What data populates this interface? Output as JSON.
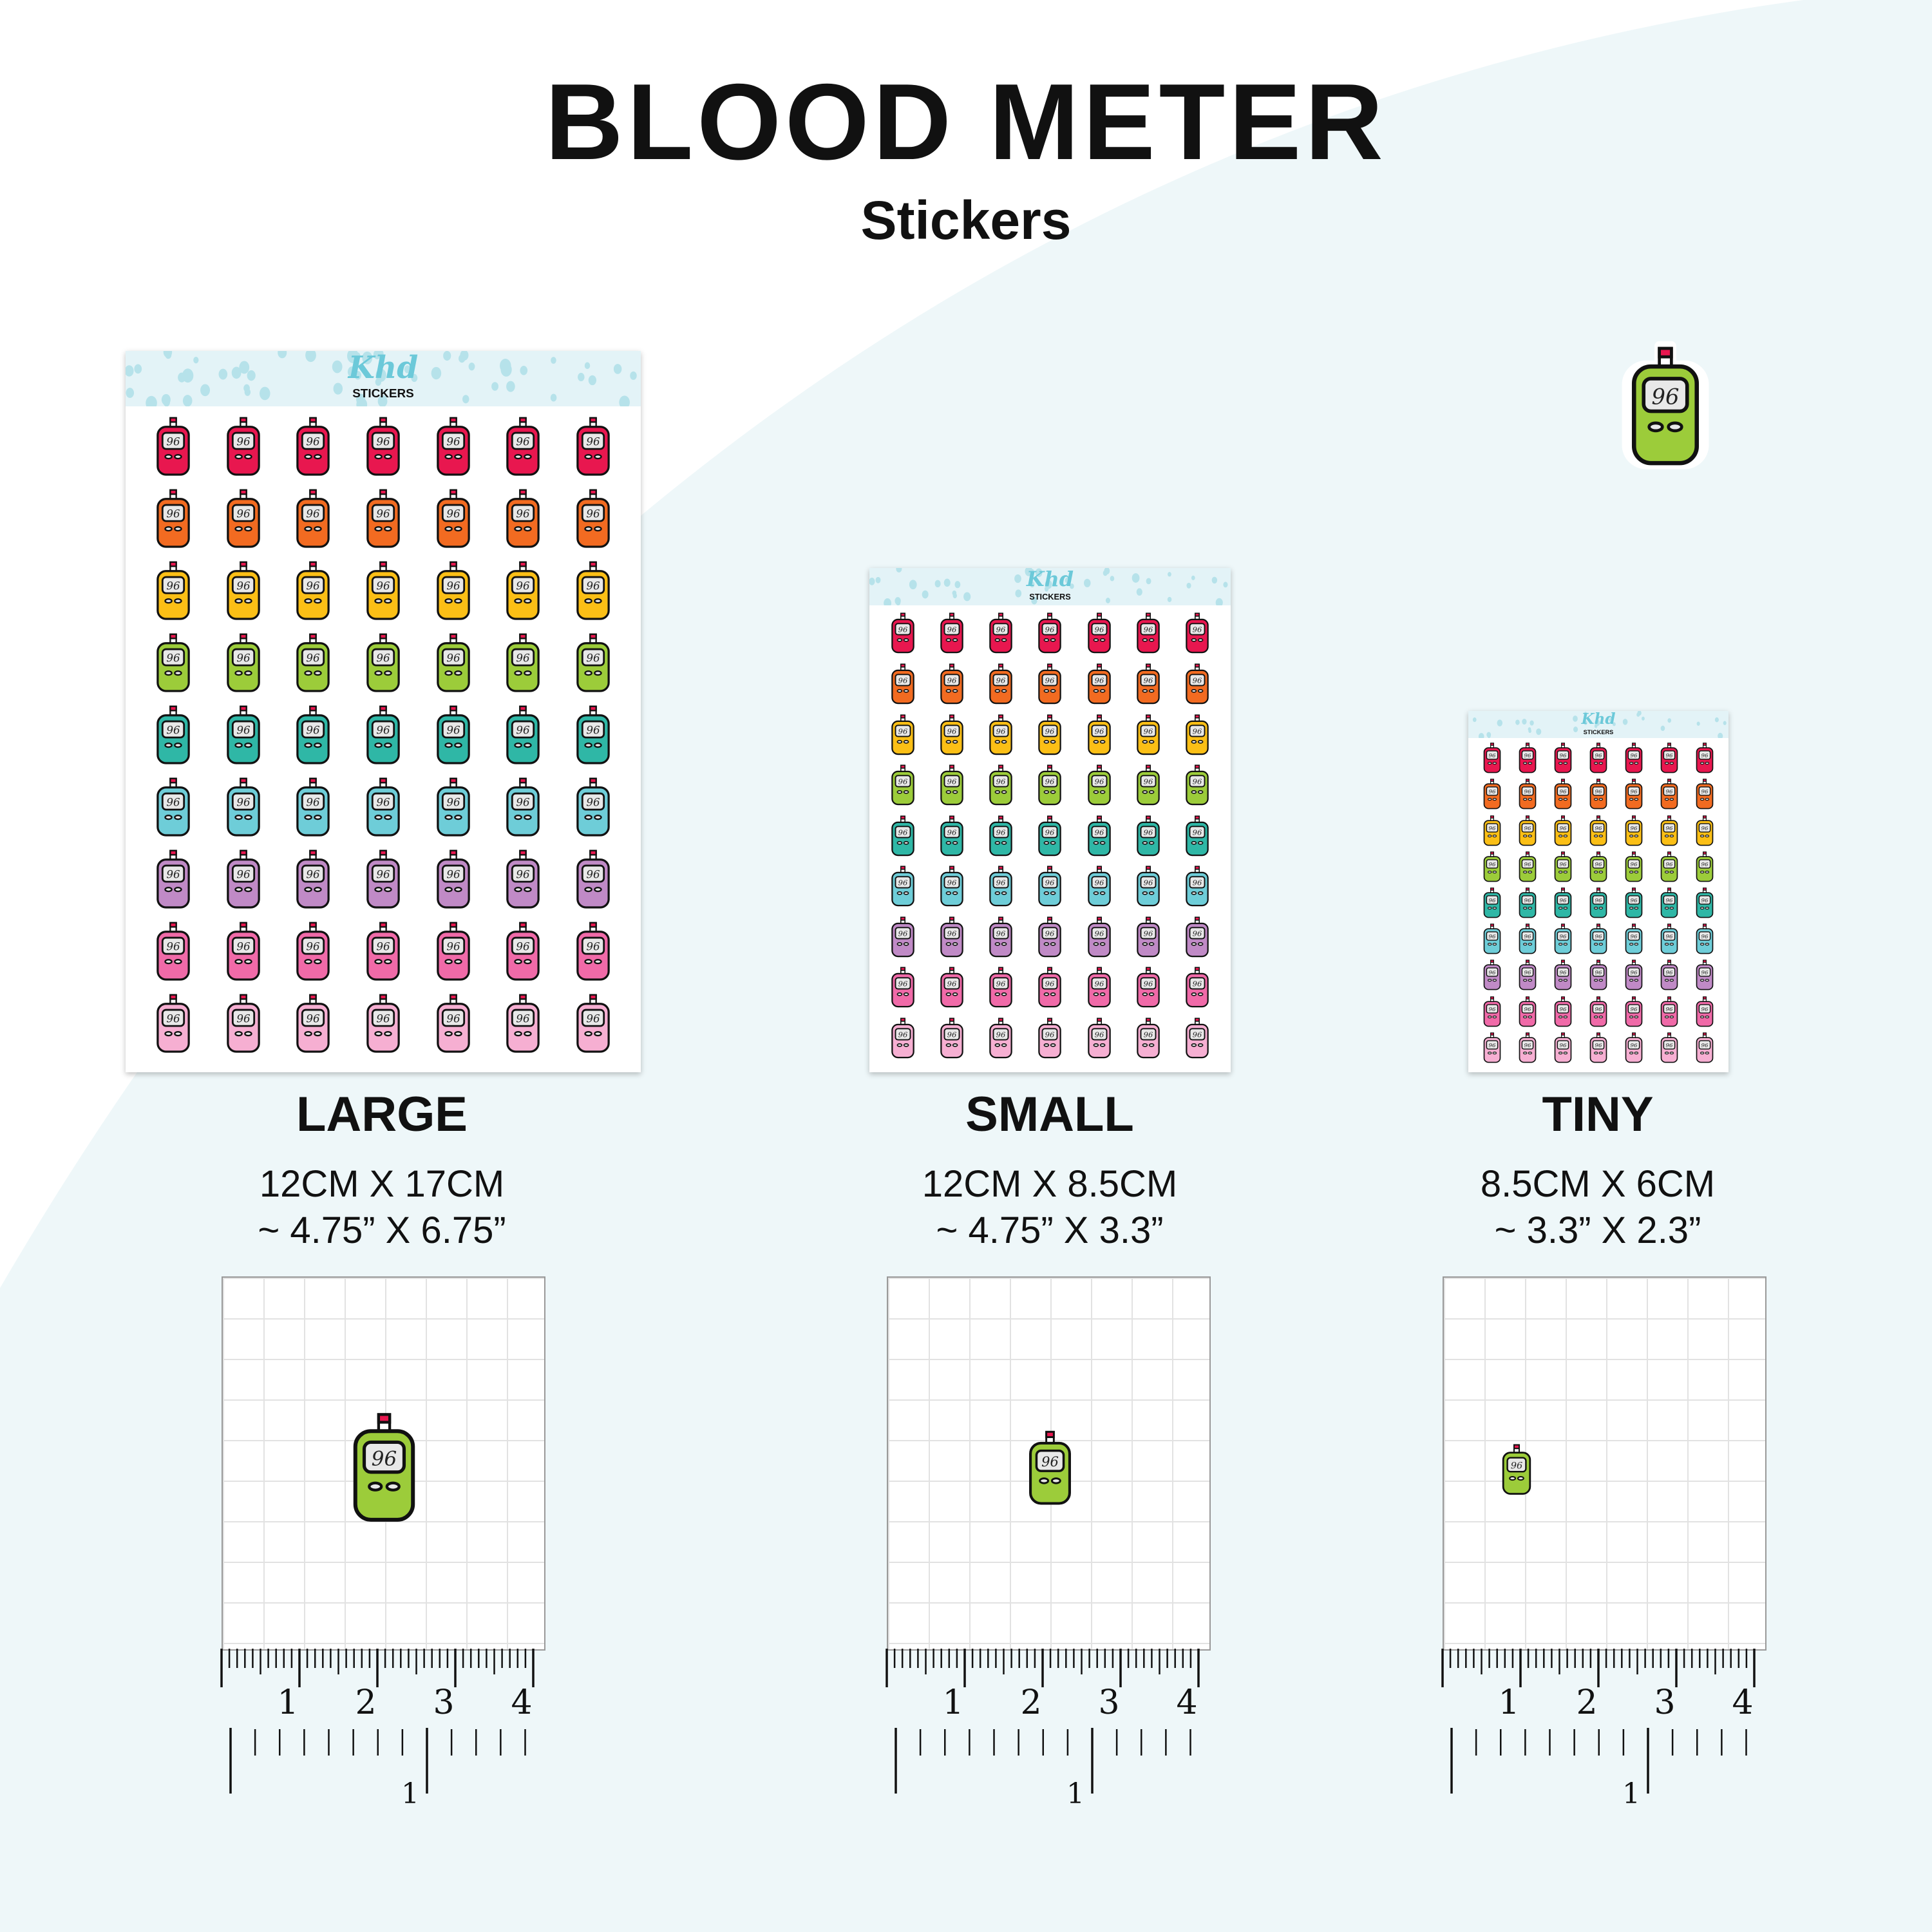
{
  "header": {
    "title": "BLOOD METER",
    "subtitle": "Stickers"
  },
  "brand": {
    "logo_script": "Khd",
    "logo_word": "STICKERS"
  },
  "sticker": {
    "reading": "96",
    "body_color": "#9ccc3a",
    "strip_color": "#e8174f",
    "screen_color": "#e8e8e8",
    "outline_color": "#111111"
  },
  "row_colors": [
    "#e8174f",
    "#f26b21",
    "#fbbf16",
    "#9ccc3a",
    "#2fb7a6",
    "#6ecdd8",
    "#c08ac6",
    "#f06aa8",
    "#f6afd2"
  ],
  "background": {
    "page": "#ffffff",
    "curve": "#eef7f9",
    "sheet_header": "#e3f3f7",
    "dots": "#b6e2ea"
  },
  "sizes": [
    {
      "label": "LARGE",
      "metric": "12CM X 17CM",
      "imperial": "~ 4.75” X 6.75”"
    },
    {
      "label": "SMALL",
      "metric": "12CM X 8.5CM",
      "imperial": "~ 4.75” X 3.3”"
    },
    {
      "label": "TINY",
      "metric": "8.5CM X 6CM",
      "imperial": "~ 3.3” X 2.3”"
    }
  ],
  "ruler": {
    "cm_labels": [
      "1",
      "2",
      "3",
      "4"
    ],
    "inch_labels": [
      "1"
    ]
  }
}
